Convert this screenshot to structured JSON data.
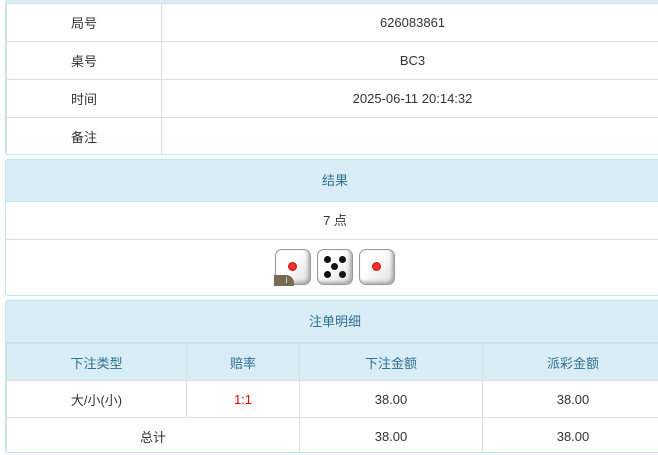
{
  "info": [
    {
      "label": "局号",
      "value": "626083861"
    },
    {
      "label": "桌号",
      "value": "BC3"
    },
    {
      "label": "时间",
      "value": "2025-06-11 20:14:32"
    },
    {
      "label": "备注",
      "value": ""
    }
  ],
  "result": {
    "title": "结果",
    "points": "7 点",
    "dice": [
      1,
      5,
      1
    ],
    "badge": "i"
  },
  "bets": {
    "title": "注单明细",
    "headers": [
      "下注类型",
      "赔率",
      "下注金额",
      "派彩金额"
    ],
    "rows": [
      {
        "type": "大/小(小)",
        "odds": "1:1",
        "amount": "38.00",
        "payout": "38.00"
      }
    ],
    "total": {
      "label": "总计",
      "amount": "38.00",
      "payout": "38.00"
    },
    "odds_color": "#ee0000"
  }
}
